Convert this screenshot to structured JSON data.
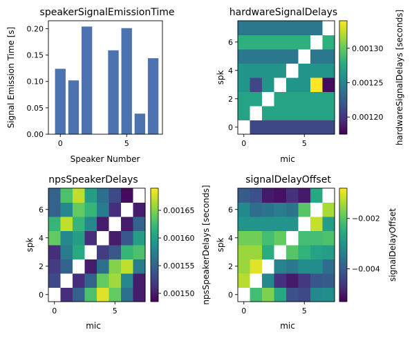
{
  "chart_data": [
    {
      "type": "bar",
      "title": "speakerSignalEmissionTime",
      "xlabel": "Speaker Number",
      "ylabel": "Signal Emission Time [s]",
      "categories": [
        0,
        1,
        2,
        3,
        4,
        5,
        6,
        7
      ],
      "values": [
        0.124,
        0.102,
        0.204,
        0.0,
        0.159,
        0.201,
        0.039,
        0.144
      ],
      "xlim": [
        -0.9,
        7.7
      ],
      "ylim": [
        0,
        0.215
      ],
      "xticks": [
        0,
        5
      ],
      "xtick_labels": [
        "0",
        "5"
      ],
      "yticks": [
        0,
        0.05,
        0.1,
        0.15,
        0.2
      ],
      "ytick_labels": [
        "0.00",
        "0.05",
        "0.10",
        "0.15",
        "0.20"
      ],
      "bar_color": "#4c72b0",
      "grid": false
    },
    {
      "type": "heatmap",
      "title": "hardwareSignalDelays",
      "xlabel": "mic",
      "ylabel": "spk",
      "colorbar_label": "hardwareSignalDelays [seconds]",
      "colormap": "viridis",
      "vmin": 0.001175,
      "vmax": 0.00134,
      "colorbar_ticks": [
        0.0012,
        0.00125,
        0.0013
      ],
      "colorbar_tick_labels": [
        "0.00120",
        "0.00125",
        "0.00130"
      ],
      "xticks": [
        0,
        5
      ],
      "xtick_labels": [
        "0",
        "5"
      ],
      "yticks": [
        0,
        2,
        4,
        6
      ],
      "ytick_labels": [
        "0",
        "2",
        "4",
        "6"
      ],
      "values": [
        [
          null,
          0.00121,
          0.00121,
          0.00121,
          0.00121,
          0.00121,
          0.00121,
          0.00121
        ],
        [
          0.00127,
          null,
          0.00127,
          0.00127,
          0.00127,
          0.00127,
          0.00127,
          0.00127
        ],
        [
          0.00127,
          0.00127,
          null,
          0.00127,
          0.00127,
          0.00127,
          0.00127,
          0.00127
        ],
        [
          0.00126,
          0.00121,
          0.00126,
          null,
          0.00126,
          0.00126,
          0.00135,
          0.00118
        ],
        [
          0.00126,
          0.00126,
          0.00126,
          0.00126,
          null,
          0.00126,
          0.00126,
          0.00126
        ],
        [
          0.00124,
          0.00124,
          0.00124,
          0.00124,
          0.00124,
          null,
          0.00124,
          0.00124
        ],
        [
          0.00128,
          0.00128,
          0.00128,
          0.00128,
          0.00128,
          0.00128,
          null,
          0.00128
        ],
        [
          0.00124,
          0.00124,
          0.00124,
          0.00124,
          0.00124,
          0.00124,
          0.00124,
          null
        ]
      ]
    },
    {
      "type": "heatmap",
      "title": "npsSpeakerDelays",
      "xlabel": "mic",
      "ylabel": "spk",
      "colorbar_label": "npsSpeakerDelays [seconds]",
      "colormap": "viridis",
      "vmin": 0.001485,
      "vmax": 0.00169,
      "colorbar_ticks": [
        0.0015,
        0.00155,
        0.0016,
        0.00165
      ],
      "colorbar_tick_labels": [
        "0.00150",
        "0.00155",
        "0.00160",
        "0.00165"
      ],
      "xticks": [
        0,
        5
      ],
      "xtick_labels": [
        "0",
        "5"
      ],
      "yticks": [
        0,
        2,
        4,
        6
      ],
      "ytick_labels": [
        "0",
        "2",
        "4",
        "6"
      ],
      "values": [
        [
          null,
          0.00151,
          0.00155,
          0.00163,
          0.00168,
          0.00164,
          0.00156,
          0.0015
        ],
        [
          0.00153,
          null,
          0.00151,
          0.00155,
          0.00164,
          0.00166,
          0.00158,
          0.0015
        ],
        [
          0.00152,
          0.00155,
          null,
          0.0015,
          0.00156,
          0.00165,
          0.00167,
          0.00157
        ],
        [
          0.00151,
          0.00157,
          0.00161,
          null,
          0.00152,
          0.00154,
          0.00162,
          0.00163
        ],
        [
          0.00164,
          0.00158,
          0.0016,
          0.00151,
          null,
          0.0015,
          0.00154,
          0.0016
        ],
        [
          0.00162,
          0.00167,
          0.00162,
          0.00158,
          0.0015,
          null,
          0.0015,
          0.00155
        ],
        [
          0.00155,
          0.00158,
          0.00164,
          0.00162,
          0.00157,
          0.00151,
          null,
          0.0015
        ],
        [
          0.00155,
          0.00163,
          0.00167,
          0.0016,
          0.00156,
          0.00153,
          0.00149,
          null
        ]
      ]
    },
    {
      "type": "heatmap",
      "title": "signalDelayOffset",
      "xlabel": "mic",
      "ylabel": "spk",
      "colorbar_label": "signalDelayOffset",
      "colormap": "viridis",
      "vmin": -0.0053,
      "vmax": -0.0008,
      "colorbar_ticks": [
        -0.004,
        -0.002
      ],
      "colorbar_tick_labels": [
        "−0.004",
        "−0.002"
      ],
      "xticks": [
        0,
        5
      ],
      "xtick_labels": [
        "0",
        "5"
      ],
      "yticks": [
        0,
        2,
        4,
        6
      ],
      "ytick_labels": [
        "0",
        "2",
        "4",
        "6"
      ],
      "values": [
        [
          null,
          -0.0022,
          -0.0017,
          -0.0026,
          -0.0042,
          -0.0043,
          -0.0032,
          -0.0031
        ],
        [
          -0.0013,
          null,
          -0.0032,
          -0.0047,
          -0.005,
          -0.0046,
          -0.0041,
          -0.004
        ],
        [
          -0.0015,
          -0.001,
          null,
          -0.0033,
          -0.0035,
          -0.0031,
          -0.0031,
          -0.0037
        ],
        [
          -0.0015,
          -0.0015,
          -0.0025,
          null,
          -0.002,
          -0.0024,
          -0.0027,
          -0.0028
        ],
        [
          -0.0018,
          -0.0018,
          -0.0022,
          -0.0019,
          null,
          -0.0022,
          -0.0022,
          -0.0021
        ],
        [
          -0.003,
          -0.003,
          -0.003,
          -0.003,
          -0.003,
          null,
          -0.0012,
          -0.0028
        ],
        [
          -0.0032,
          -0.0037,
          -0.0036,
          -0.0034,
          -0.0036,
          -0.002,
          null,
          -0.0014
        ],
        [
          -0.004,
          -0.0042,
          -0.005,
          -0.0051,
          -0.0047,
          -0.005,
          -0.0026,
          null
        ]
      ]
    }
  ]
}
